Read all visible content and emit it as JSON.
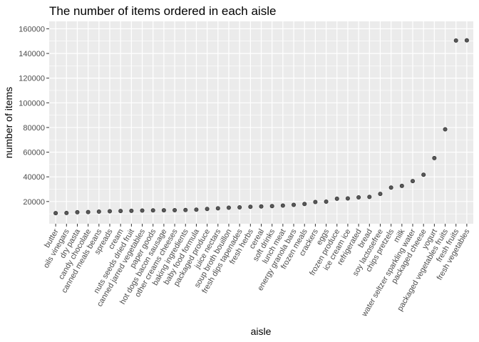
{
  "chart_data": {
    "type": "scatter",
    "title": "The number of items ordered in each aisle",
    "xlabel": "aisle",
    "ylabel": "number of items",
    "ylim": [
      2000,
      166000
    ],
    "yticks": [
      20000,
      40000,
      60000,
      80000,
      100000,
      120000,
      140000,
      160000
    ],
    "ytick_labels": [
      "20000",
      "40000",
      "60000",
      "80000",
      "100000",
      "120000",
      "140000",
      "160000"
    ],
    "grid": true,
    "legend": "none",
    "colors": {
      "panel": "#ebebeb",
      "grid": "#ffffff",
      "point": "#333333",
      "point_fill": "#595959"
    },
    "categories": [
      "butter",
      "oils vinegars",
      "dry pasta",
      "candy chocolate",
      "canned meals beans",
      "spreads",
      "cream",
      "nuts seeds dried fruit",
      "canned jarred vegetables",
      "paper goods",
      "hot dogs bacon sausage",
      "other creams cheeses",
      "baking ingredients",
      "baby food formula",
      "packaged produce",
      "juice nectars",
      "soup broth bouillon",
      "fresh dips tapenades",
      "fresh herbs",
      "cereal",
      "soft drinks",
      "lunch meat",
      "energy granola bars",
      "frozen meals",
      "crackers",
      "eggs",
      "frozen produce",
      "ice cream ice",
      "refrigerated",
      "bread",
      "soy lactosefree",
      "chips pretzels",
      "milk",
      "water seltzer sparkling water",
      "packaged cheese",
      "yogurt",
      "packaged vegetables fruits",
      "fresh fruits",
      "fresh vegetables"
    ],
    "values": [
      10575,
      10700,
      11300,
      11450,
      11800,
      12100,
      12350,
      12500,
      12650,
      12800,
      12900,
      13000,
      13100,
      13400,
      14000,
      14500,
      15000,
      15300,
      15700,
      16000,
      16300,
      16700,
      17300,
      18000,
      19600,
      19900,
      22300,
      22500,
      23400,
      23700,
      26200,
      31300,
      32700,
      36600,
      41700,
      55200,
      78500,
      150500,
      150600
    ]
  }
}
